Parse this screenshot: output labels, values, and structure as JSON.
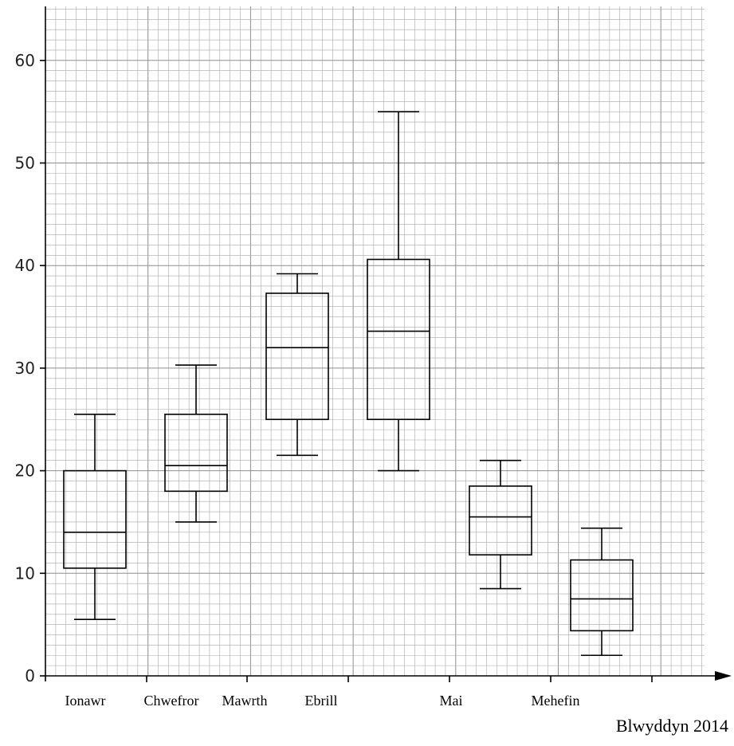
{
  "chart_data": {
    "type": "boxplot",
    "title": "",
    "xlabel": "",
    "ylabel": "",
    "ylim": [
      0,
      65
    ],
    "y_ticks": [
      0,
      10,
      20,
      30,
      40,
      50,
      60
    ],
    "grid": true,
    "x_labels": [
      "Ionawr",
      "Chwefror",
      "Mawrth",
      "Ebrill",
      "Mai",
      "Mehefin"
    ],
    "boxes": [
      {
        "min": 5.5,
        "q1": 10.5,
        "median": 14,
        "q3": 20,
        "max": 25.5
      },
      {
        "min": 15,
        "q1": 18,
        "median": 20.5,
        "q3": 25.5,
        "max": 30.3
      },
      {
        "min": 21.5,
        "q1": 25,
        "median": 32,
        "q3": 37.3,
        "max": 39.2
      },
      {
        "min": 20,
        "q1": 25,
        "median": 33.6,
        "q3": 40.6,
        "max": 55
      },
      {
        "min": 8.5,
        "q1": 11.8,
        "median": 15.5,
        "q3": 18.5,
        "max": 21
      },
      {
        "min": 2,
        "q1": 4.4,
        "median": 7.5,
        "q3": 11.3,
        "max": 14.4
      }
    ],
    "footer": "Blwyddyn 2014"
  }
}
